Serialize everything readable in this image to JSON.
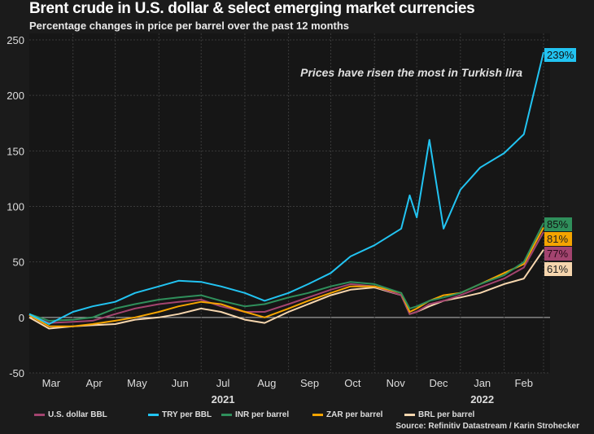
{
  "title": "Brent crude in U.S. dollar & select emerging market currencies",
  "subtitle": "Percentage changes in price per barrel over the past 12 months",
  "source": "Source: Refinitiv Datastream / Karin Strohecker",
  "chart_data": {
    "type": "line",
    "annotation": "Prices have risen the most in Turkish lira",
    "ylim": [
      -50,
      250
    ],
    "yticks": [
      -50,
      0,
      50,
      100,
      150,
      200,
      250
    ],
    "xlim": [
      "2021-03-01",
      "2022-03-01"
    ],
    "month_labels": [
      "Mar",
      "Apr",
      "May",
      "Jun",
      "Jul",
      "Aug",
      "Sep",
      "Oct",
      "Nov",
      "Dec",
      "Jan",
      "Feb"
    ],
    "year_labels": [
      "2021",
      "2022"
    ],
    "grid": true,
    "legend_placement": "bottom",
    "x": [
      "2021-03-01",
      "2021-03-15",
      "2021-04-01",
      "2021-04-15",
      "2021-05-01",
      "2021-05-15",
      "2021-06-01",
      "2021-06-15",
      "2021-07-01",
      "2021-07-15",
      "2021-08-01",
      "2021-08-15",
      "2021-09-01",
      "2021-09-15",
      "2021-10-01",
      "2021-10-15",
      "2021-11-01",
      "2021-11-20",
      "2021-11-26",
      "2021-12-01",
      "2021-12-10",
      "2021-12-20",
      "2022-01-01",
      "2022-01-15",
      "2022-02-01",
      "2022-02-15",
      "2022-03-01"
    ],
    "series": [
      {
        "name": "U.S. dollar BBL",
        "color": "#a3446f",
        "end_label": "77%",
        "values": [
          2,
          -5,
          -4,
          -3,
          3,
          8,
          12,
          14,
          16,
          10,
          5,
          5,
          12,
          18,
          25,
          30,
          28,
          20,
          3,
          5,
          12,
          15,
          20,
          27,
          35,
          45,
          77
        ]
      },
      {
        "name": "TRY per BBL",
        "color": "#22c4f2",
        "end_label": "239%",
        "values": [
          3,
          -6,
          5,
          10,
          14,
          22,
          28,
          33,
          32,
          28,
          22,
          15,
          22,
          30,
          40,
          55,
          65,
          80,
          110,
          90,
          160,
          80,
          115,
          135,
          148,
          165,
          239
        ]
      },
      {
        "name": "INR per barrel",
        "color": "#2f8f5b",
        "end_label": "85%",
        "values": [
          3,
          -3,
          -2,
          0,
          8,
          12,
          16,
          18,
          20,
          15,
          10,
          12,
          18,
          22,
          28,
          32,
          30,
          22,
          8,
          10,
          15,
          18,
          22,
          30,
          38,
          50,
          85
        ]
      },
      {
        "name": "ZAR per barrel",
        "color": "#f5a400",
        "end_label": "81%",
        "values": [
          2,
          -8,
          -8,
          -6,
          -3,
          0,
          5,
          10,
          14,
          12,
          5,
          0,
          8,
          15,
          22,
          28,
          28,
          22,
          5,
          8,
          15,
          20,
          22,
          30,
          40,
          48,
          81
        ]
      },
      {
        "name": "BRL per barrel",
        "color": "#f6d6ae",
        "end_label": "61%",
        "values": [
          0,
          -10,
          -8,
          -7,
          -6,
          -2,
          0,
          3,
          8,
          5,
          -2,
          -5,
          5,
          12,
          20,
          25,
          27,
          20,
          3,
          5,
          10,
          15,
          18,
          22,
          30,
          35,
          61
        ]
      }
    ]
  }
}
